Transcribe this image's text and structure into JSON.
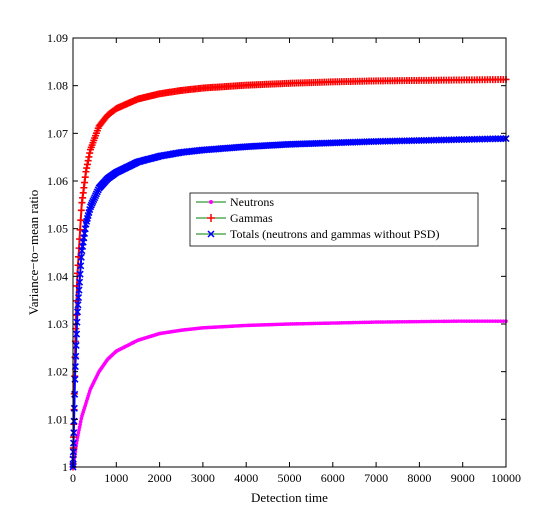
{
  "chart_data": {
    "type": "line",
    "title": "",
    "xlabel": "Detection time",
    "ylabel": "Variance−to−mean ratio",
    "xlim": [
      0,
      10000
    ],
    "ylim": [
      1,
      1.09
    ],
    "xticks": [
      0,
      1000,
      2000,
      3000,
      4000,
      5000,
      6000,
      7000,
      8000,
      9000,
      10000
    ],
    "xtick_labels": [
      "0",
      "1000",
      "2000",
      "3000",
      "4000",
      "5000",
      "6000",
      "7000",
      "8000",
      "9000",
      "10000"
    ],
    "yticks": [
      1,
      1.01,
      1.02,
      1.03,
      1.04,
      1.05,
      1.06,
      1.07,
      1.08,
      1.09
    ],
    "ytick_labels": [
      "1",
      "1.01",
      "1.02",
      "1.03",
      "1.04",
      "1.05",
      "1.06",
      "1.07",
      "1.08",
      "1.09"
    ],
    "grid": false,
    "legend_position": "center-right",
    "series": [
      {
        "name": "Neutrons",
        "color": "#ff00ff",
        "marker": "dot",
        "x": [
          0,
          100,
          200,
          400,
          600,
          800,
          1000,
          1500,
          2000,
          2500,
          3000,
          4000,
          5000,
          6000,
          7000,
          8000,
          9000,
          10000
        ],
        "y": [
          1.0,
          1.006,
          1.0105,
          1.0163,
          1.02,
          1.0226,
          1.0243,
          1.0266,
          1.028,
          1.0287,
          1.0292,
          1.0297,
          1.03,
          1.0302,
          1.0304,
          1.0305,
          1.0306,
          1.0306
        ]
      },
      {
        "name": "Gammas",
        "color": "#ff0000",
        "marker": "plus",
        "x": [
          0,
          50,
          100,
          200,
          300,
          400,
          600,
          800,
          1000,
          1500,
          2000,
          2500,
          3000,
          4000,
          5000,
          6000,
          7000,
          8000,
          9000,
          10000
        ],
        "y": [
          1.0,
          1.025,
          1.04,
          1.055,
          1.062,
          1.0665,
          1.0715,
          1.0738,
          1.0752,
          1.0772,
          1.0783,
          1.079,
          1.0795,
          1.0801,
          1.0805,
          1.0808,
          1.081,
          1.0811,
          1.0812,
          1.0813
        ]
      },
      {
        "name": "Totals (neutrons and gammas without PSD)",
        "color": "#0000ff",
        "marker": "x",
        "x": [
          0,
          50,
          100,
          200,
          300,
          400,
          600,
          800,
          1000,
          1500,
          2000,
          2500,
          3000,
          4000,
          5000,
          6000,
          7000,
          8000,
          9000,
          10000
        ],
        "y": [
          1.0,
          1.02,
          1.032,
          1.045,
          1.051,
          1.0545,
          1.0585,
          1.0605,
          1.0618,
          1.064,
          1.0652,
          1.066,
          1.0665,
          1.0672,
          1.0677,
          1.068,
          1.0683,
          1.0685,
          1.0687,
          1.0689
        ]
      }
    ]
  }
}
